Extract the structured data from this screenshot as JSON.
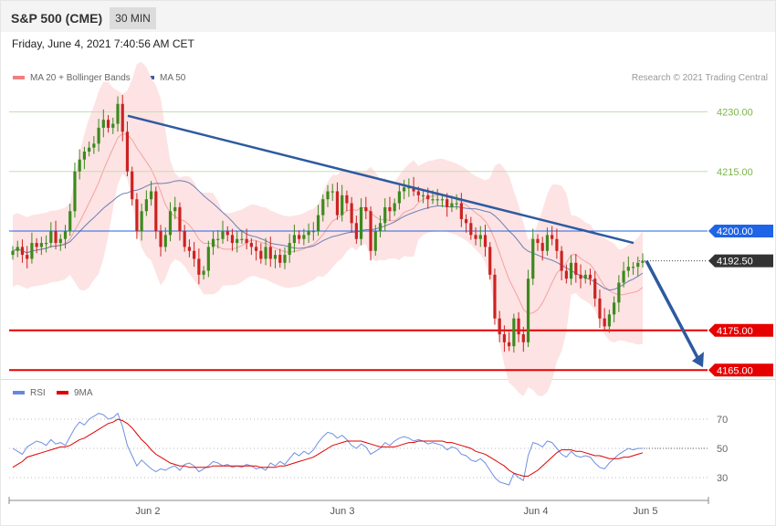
{
  "header": {
    "symbol": "S&P 500 (CME)",
    "timeframe": "30 MIN"
  },
  "datetime": "Friday, June 4, 2021 7:40:56 AM CET",
  "legend": {
    "bollinger": {
      "label": "MA 20 + Bollinger Bands",
      "color": "#f08080"
    },
    "ma50": {
      "label": "MA 50",
      "color": "#3a5f9f"
    },
    "rsi": {
      "label": "RSI",
      "color": "#6688dd"
    },
    "rsi_ma": {
      "label": "9MA",
      "color": "#e00000"
    }
  },
  "copyright": "Research © 2021 Trading Central",
  "colors": {
    "bullish": "#3c8a1e",
    "bearish": "#cc2222",
    "band": "#fde3e3",
    "level_green": "#7ab648",
    "level_blue": "#1e64e6",
    "level_red": "#e60000",
    "arrow": "#2d5aa0",
    "price_tag": "#333333"
  },
  "chart_data": [
    {
      "type": "candlestick",
      "title": "",
      "ylim": [
        4162,
        4240
      ],
      "x_labels": [
        "Jun 2",
        "Jun 3",
        "Jun 4",
        "Jun 5"
      ],
      "levels": [
        {
          "value": 4230.0,
          "label": "4230.00",
          "style": "green"
        },
        {
          "value": 4215.0,
          "label": "4215.00",
          "style": "green"
        },
        {
          "value": 4200.0,
          "label": "4200.00",
          "style": "blue"
        },
        {
          "value": 4192.5,
          "label": "4192.50",
          "style": "current"
        },
        {
          "value": 4175.0,
          "label": "4175.00",
          "style": "red"
        },
        {
          "value": 4165.0,
          "label": "4165.00",
          "style": "red"
        }
      ],
      "close": [
        4195,
        4196,
        4194,
        4193,
        4197,
        4196,
        4197,
        4197,
        4200,
        4197,
        4198,
        4200,
        4205,
        4215,
        4218,
        4220,
        4221,
        4222,
        4226,
        4228,
        4226,
        4227,
        4232,
        4225,
        4215,
        4208,
        4200,
        4205,
        4208,
        4210,
        4200,
        4196,
        4199,
        4205,
        4206,
        4200,
        4196,
        4195,
        4193,
        4189,
        4190,
        4196,
        4198,
        4198,
        4200,
        4199,
        4197,
        4198,
        4198,
        4197,
        4196,
        4195,
        4193,
        4196,
        4193,
        4194,
        4192,
        4194,
        4197,
        4199,
        4198,
        4199,
        4200,
        4200,
        4204,
        4208,
        4210,
        4210,
        4204,
        4209,
        4207,
        4202,
        4198,
        4206,
        4205,
        4195,
        4200,
        4202,
        4206,
        4205,
        4207,
        4210,
        4211,
        4211,
        4210,
        4209,
        4209,
        4208,
        4208,
        4208,
        4208,
        4206,
        4207,
        4207,
        4203,
        4202,
        4199,
        4198,
        4199,
        4196,
        4189,
        4178,
        4174,
        4172,
        4171,
        4178,
        4174,
        4172,
        4188,
        4198,
        4197,
        4195,
        4199,
        4198,
        4195,
        4190,
        4188,
        4192,
        4189,
        4188,
        4189,
        4188,
        4183,
        4178,
        4176,
        4179,
        4182,
        4187,
        4190,
        4191,
        4191,
        4192,
        4192.5
      ],
      "bollinger_band": {
        "upper_peak": 4236,
        "lower_trough": 4171
      },
      "trendline": {
        "from_value": 4229,
        "to_value": 4197
      },
      "projection_target": 4165
    },
    {
      "type": "line",
      "title": "",
      "ylim": [
        20,
        90
      ],
      "y_ticks": [
        70,
        50,
        30
      ],
      "series": [
        {
          "name": "RSI",
          "values": [
            50,
            48,
            46,
            51,
            53,
            55,
            54,
            52,
            56,
            53,
            54,
            52,
            58,
            64,
            68,
            66,
            70,
            72,
            74,
            73,
            70,
            71,
            74,
            65,
            52,
            45,
            38,
            42,
            39,
            36,
            34,
            36,
            35,
            37,
            38,
            35,
            39,
            40,
            38,
            34,
            36,
            38,
            41,
            40,
            38,
            39,
            37,
            38,
            37,
            39,
            38,
            36,
            37,
            35,
            40,
            38,
            41,
            39,
            43,
            47,
            45,
            48,
            46,
            49,
            54,
            58,
            61,
            60,
            57,
            59,
            56,
            52,
            50,
            53,
            51,
            46,
            48,
            50,
            54,
            52,
            55,
            57,
            58,
            57,
            55,
            56,
            55,
            53,
            54,
            53,
            52,
            49,
            51,
            50,
            46,
            45,
            42,
            41,
            43,
            40,
            35,
            30,
            27,
            26,
            25,
            33,
            30,
            28,
            45,
            54,
            53,
            51,
            55,
            54,
            50,
            46,
            44,
            48,
            45,
            44,
            45,
            44,
            40,
            37,
            36,
            40,
            43,
            46,
            48,
            50,
            49,
            50,
            50
          ]
        },
        {
          "name": "9MA",
          "values": [
            37,
            39,
            41,
            44,
            45,
            46,
            47,
            48,
            49,
            50,
            51,
            51,
            52,
            54,
            56,
            57,
            59,
            61,
            63,
            65,
            67,
            68,
            70,
            69,
            67,
            64,
            60,
            56,
            53,
            49,
            46,
            44,
            42,
            40,
            39,
            38,
            38,
            37,
            37,
            37,
            37,
            37,
            38,
            38,
            38,
            38,
            38,
            38,
            38,
            38,
            38,
            38,
            37,
            37,
            37,
            37,
            38,
            38,
            39,
            40,
            41,
            42,
            43,
            44,
            46,
            48,
            50,
            52,
            53,
            54,
            55,
            55,
            55,
            55,
            54,
            53,
            52,
            51,
            51,
            51,
            51,
            52,
            53,
            54,
            54,
            55,
            55,
            55,
            55,
            55,
            55,
            54,
            54,
            53,
            52,
            51,
            50,
            48,
            47,
            46,
            44,
            42,
            40,
            38,
            35,
            33,
            32,
            31,
            31,
            33,
            35,
            38,
            41,
            44,
            47,
            49,
            49,
            49,
            48,
            48,
            47,
            46,
            45,
            45,
            44,
            43,
            43,
            43,
            44,
            44,
            45,
            46,
            47
          ]
        }
      ]
    }
  ]
}
